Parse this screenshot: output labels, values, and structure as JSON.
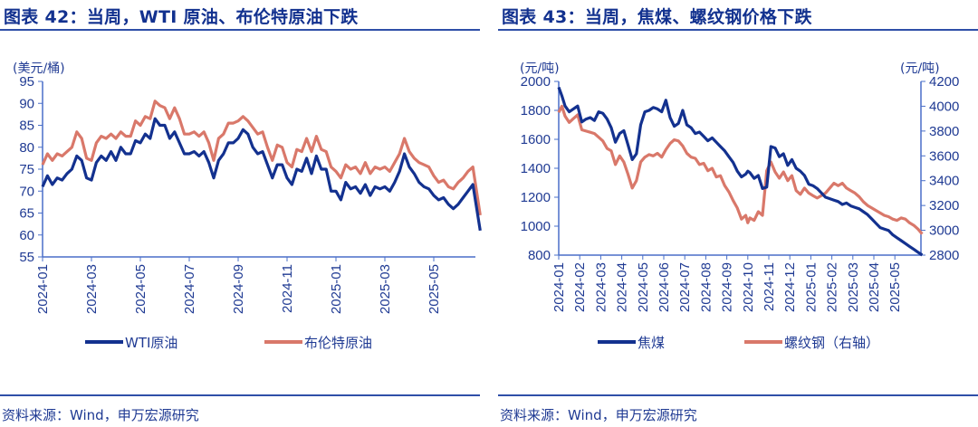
{
  "left": {
    "title": "图表 42：当周，WTI 原油、布伦特原油下跌",
    "source": "资料来源：Wind，申万宏源研究",
    "unit": "(美元/桶)",
    "legend": [
      "WTI原油",
      "布伦特原油"
    ]
  },
  "right": {
    "title": "图表 43：当周，焦煤、螺纹钢价格下跌",
    "source": "资料来源：Wind，申万宏源研究",
    "unit_left": "(元/吨)",
    "unit_right": "(元/吨)",
    "legend": [
      "焦煤",
      "螺纹钢（右轴）"
    ]
  },
  "colors": {
    "series1": "#13318f",
    "series2": "#d9786a",
    "axis": "#4a6fc8",
    "text": "#1f3a93"
  },
  "chart_data": [
    {
      "type": "line",
      "title": "图表 42：当周，WTI 原油、布伦特原油下跌",
      "ylabel": "(美元/桶)",
      "ylim": [
        55,
        95
      ],
      "yticks": [
        55,
        60,
        65,
        70,
        75,
        80,
        85,
        90,
        95
      ],
      "x_tick_labels": [
        "2024-01",
        "2024-03",
        "2024-05",
        "2024-07",
        "2024-09",
        "2024-11",
        "2025-01",
        "2025-03",
        "2025-05"
      ],
      "x_range_months": [
        0,
        17.9
      ],
      "legend_position": "bottom",
      "grid": false,
      "series": [
        {
          "name": "WTI原油",
          "color": "#13318f",
          "x": [
            0,
            0.2,
            0.4,
            0.6,
            0.8,
            1.0,
            1.2,
            1.4,
            1.6,
            1.8,
            2.0,
            2.2,
            2.4,
            2.6,
            2.8,
            3.0,
            3.2,
            3.4,
            3.6,
            3.8,
            4.0,
            4.2,
            4.4,
            4.6,
            4.8,
            5.0,
            5.2,
            5.4,
            5.6,
            5.8,
            6.0,
            6.2,
            6.4,
            6.6,
            6.8,
            7.0,
            7.2,
            7.4,
            7.6,
            7.8,
            8.0,
            8.2,
            8.4,
            8.6,
            8.8,
            9.0,
            9.2,
            9.4,
            9.6,
            9.8,
            10.0,
            10.2,
            10.4,
            10.6,
            10.8,
            11.0,
            11.2,
            11.4,
            11.6,
            11.8,
            12.0,
            12.2,
            12.4,
            12.6,
            12.8,
            13.0,
            13.2,
            13.4,
            13.6,
            13.8,
            14.0,
            14.2,
            14.4,
            14.6,
            14.8,
            15.0,
            15.2,
            15.4,
            15.6,
            15.8,
            16.0,
            16.2,
            16.4,
            16.6,
            16.8,
            17.0,
            17.2,
            17.4,
            17.6,
            17.9
          ],
          "values": [
            71,
            73.5,
            71.5,
            73,
            72.5,
            74,
            75,
            78,
            77,
            73,
            72.5,
            76.5,
            78,
            77,
            79,
            77,
            80,
            78.5,
            78.5,
            81.5,
            81,
            83,
            82,
            86.5,
            85,
            85,
            82,
            83.5,
            81,
            78.5,
            78.5,
            79,
            78,
            79,
            76.5,
            73,
            77,
            78.5,
            81,
            81,
            82,
            84,
            83,
            80,
            78.5,
            79,
            76,
            73,
            76,
            76,
            73,
            71.5,
            75,
            74.5,
            77.5,
            74,
            78,
            75,
            75,
            70,
            70,
            68,
            72,
            70.5,
            71,
            69.5,
            71.5,
            69,
            71,
            70.5,
            71,
            70,
            72,
            74.5,
            78.5,
            75.5,
            74,
            72,
            71,
            70.5,
            69,
            68,
            68.5,
            67,
            66,
            67,
            68.5,
            70,
            71.5,
            61
          ]
        },
        {
          "name": "布伦特原油",
          "color": "#d9786a",
          "x": [
            0,
            0.2,
            0.4,
            0.6,
            0.8,
            1.0,
            1.2,
            1.4,
            1.6,
            1.8,
            2.0,
            2.2,
            2.4,
            2.6,
            2.8,
            3.0,
            3.2,
            3.4,
            3.6,
            3.8,
            4.0,
            4.2,
            4.4,
            4.6,
            4.8,
            5.0,
            5.2,
            5.4,
            5.6,
            5.8,
            6.0,
            6.2,
            6.4,
            6.6,
            6.8,
            7.0,
            7.2,
            7.4,
            7.6,
            7.8,
            8.0,
            8.2,
            8.4,
            8.6,
            8.8,
            9.0,
            9.2,
            9.4,
            9.6,
            9.8,
            10.0,
            10.2,
            10.4,
            10.6,
            10.8,
            11.0,
            11.2,
            11.4,
            11.6,
            11.8,
            12.0,
            12.2,
            12.4,
            12.6,
            12.8,
            13.0,
            13.2,
            13.4,
            13.6,
            13.8,
            14.0,
            14.2,
            14.4,
            14.6,
            14.8,
            15.0,
            15.2,
            15.4,
            15.6,
            15.8,
            16.0,
            16.2,
            16.4,
            16.6,
            16.8,
            17.0,
            17.2,
            17.4,
            17.6,
            17.9
          ],
          "values": [
            76,
            78.5,
            77,
            78.5,
            78,
            79,
            80,
            83.5,
            82,
            77.5,
            77,
            81,
            82.5,
            82,
            83,
            82,
            83.5,
            82.5,
            82.5,
            86,
            85,
            87,
            86.5,
            90.5,
            89.5,
            89,
            86.5,
            89,
            86.5,
            83,
            83,
            83.5,
            82.5,
            83.5,
            81,
            77,
            82,
            83,
            85.5,
            85.5,
            86,
            87,
            86,
            84.5,
            83,
            83.5,
            80,
            77,
            80.5,
            80,
            76.5,
            75.5,
            79.5,
            79,
            82,
            79,
            82.5,
            79.5,
            79,
            75.5,
            74.5,
            73,
            76,
            75,
            75.5,
            74,
            76.5,
            74,
            75.5,
            75,
            75.5,
            74.5,
            76.5,
            78.5,
            82,
            79,
            77.5,
            76.5,
            76,
            75.5,
            73.5,
            72,
            72.5,
            71,
            70.5,
            72,
            73,
            74.5,
            75.5,
            64.5
          ]
        }
      ]
    },
    {
      "type": "line",
      "title": "图表 43：当周，焦煤、螺纹钢价格下跌",
      "ylabel": "(元/吨)",
      "ylabel_right": "(元/吨)",
      "ylim": [
        800,
        2000
      ],
      "ylim_right": [
        2800,
        4200
      ],
      "yticks": [
        800,
        1000,
        1200,
        1400,
        1600,
        1800,
        2000
      ],
      "yticks_right": [
        2800,
        3000,
        3200,
        3400,
        3600,
        3800,
        4000,
        4200
      ],
      "x_tick_labels": [
        "2024-01",
        "2024-02",
        "2024-03",
        "2024-04",
        "2024-05",
        "2024-06",
        "2024-07",
        "2024-08",
        "2024-09",
        "2024-10",
        "2024-11",
        "2024-12",
        "2025-01",
        "2025-02",
        "2025-03",
        "2025-04",
        "2025-05"
      ],
      "legend_position": "bottom",
      "grid": false,
      "series": [
        {
          "name": "焦煤",
          "axis": "left",
          "color": "#13318f",
          "x": [
            0,
            0.15,
            0.3,
            0.5,
            0.7,
            0.9,
            1.1,
            1.3,
            1.5,
            1.7,
            1.9,
            2.1,
            2.3,
            2.5,
            2.7,
            2.9,
            3.1,
            3.3,
            3.5,
            3.7,
            3.9,
            4.1,
            4.3,
            4.5,
            4.7,
            4.9,
            5.1,
            5.3,
            5.5,
            5.7,
            5.9,
            6.1,
            6.3,
            6.5,
            6.7,
            6.9,
            7.1,
            7.3,
            7.5,
            7.7,
            7.9,
            8.1,
            8.3,
            8.5,
            8.7,
            8.9,
            9.0,
            9.1,
            9.3,
            9.5,
            9.7,
            9.9,
            10.1,
            10.3,
            10.5,
            10.7,
            10.9,
            11.1,
            11.3,
            11.5,
            11.7,
            11.9,
            12.1,
            12.3,
            12.5,
            12.7,
            12.9,
            13.1,
            13.3,
            13.5,
            13.7,
            13.9,
            14.1,
            14.3,
            14.5,
            14.7,
            14.9,
            15.1,
            15.3,
            15.5,
            15.7,
            15.9,
            16.1,
            16.3,
            16.5,
            16.7,
            16.9,
            17.1,
            17.3
          ],
          "values": [
            1960,
            1900,
            1830,
            1790,
            1810,
            1830,
            1720,
            1740,
            1750,
            1730,
            1790,
            1780,
            1740,
            1680,
            1580,
            1640,
            1660,
            1560,
            1460,
            1500,
            1700,
            1790,
            1800,
            1820,
            1810,
            1790,
            1870,
            1750,
            1690,
            1710,
            1800,
            1700,
            1680,
            1640,
            1650,
            1620,
            1590,
            1610,
            1580,
            1550,
            1520,
            1480,
            1440,
            1380,
            1340,
            1360,
            1380,
            1370,
            1330,
            1350,
            1260,
            1270,
            1550,
            1540,
            1480,
            1500,
            1420,
            1460,
            1400,
            1380,
            1350,
            1290,
            1280,
            1260,
            1230,
            1200,
            1190,
            1180,
            1170,
            1150,
            1160,
            1140,
            1130,
            1120,
            1100,
            1080,
            1050,
            1020,
            990,
            980,
            970,
            940,
            920,
            900,
            880,
            860,
            840,
            820,
            800
          ]
        },
        {
          "name": "螺纹钢（右轴）",
          "axis": "right",
          "color": "#d9786a",
          "x": [
            0,
            0.15,
            0.3,
            0.5,
            0.7,
            0.9,
            1.1,
            1.3,
            1.5,
            1.7,
            1.9,
            2.1,
            2.3,
            2.5,
            2.7,
            2.9,
            3.1,
            3.3,
            3.5,
            3.7,
            3.9,
            4.1,
            4.3,
            4.5,
            4.7,
            4.9,
            5.1,
            5.3,
            5.5,
            5.7,
            5.9,
            6.1,
            6.3,
            6.5,
            6.7,
            6.9,
            7.1,
            7.3,
            7.5,
            7.7,
            7.9,
            8.1,
            8.3,
            8.5,
            8.7,
            8.9,
            9.0,
            9.1,
            9.3,
            9.5,
            9.7,
            9.9,
            10.1,
            10.3,
            10.5,
            10.7,
            10.9,
            11.1,
            11.3,
            11.5,
            11.7,
            11.9,
            12.1,
            12.3,
            12.5,
            12.7,
            12.9,
            13.1,
            13.3,
            13.5,
            13.7,
            13.9,
            14.1,
            14.3,
            14.5,
            14.7,
            14.9,
            15.1,
            15.3,
            15.5,
            15.7,
            15.9,
            16.1,
            16.3,
            16.5,
            16.7,
            16.9,
            17.1,
            17.3
          ],
          "values": [
            3950,
            4000,
            3920,
            3870,
            3900,
            3930,
            3810,
            3800,
            3790,
            3780,
            3750,
            3720,
            3660,
            3640,
            3530,
            3600,
            3550,
            3450,
            3340,
            3400,
            3550,
            3590,
            3610,
            3600,
            3620,
            3590,
            3650,
            3700,
            3730,
            3720,
            3680,
            3620,
            3590,
            3580,
            3530,
            3540,
            3480,
            3500,
            3430,
            3440,
            3360,
            3310,
            3240,
            3180,
            3090,
            3120,
            3060,
            3100,
            3080,
            3150,
            3120,
            3480,
            3550,
            3470,
            3420,
            3470,
            3400,
            3440,
            3320,
            3290,
            3340,
            3300,
            3280,
            3260,
            3280,
            3300,
            3340,
            3380,
            3360,
            3380,
            3340,
            3320,
            3300,
            3270,
            3230,
            3200,
            3180,
            3160,
            3140,
            3120,
            3110,
            3090,
            3080,
            3100,
            3090,
            3060,
            3040,
            3010,
            2970
          ]
        }
      ]
    }
  ]
}
